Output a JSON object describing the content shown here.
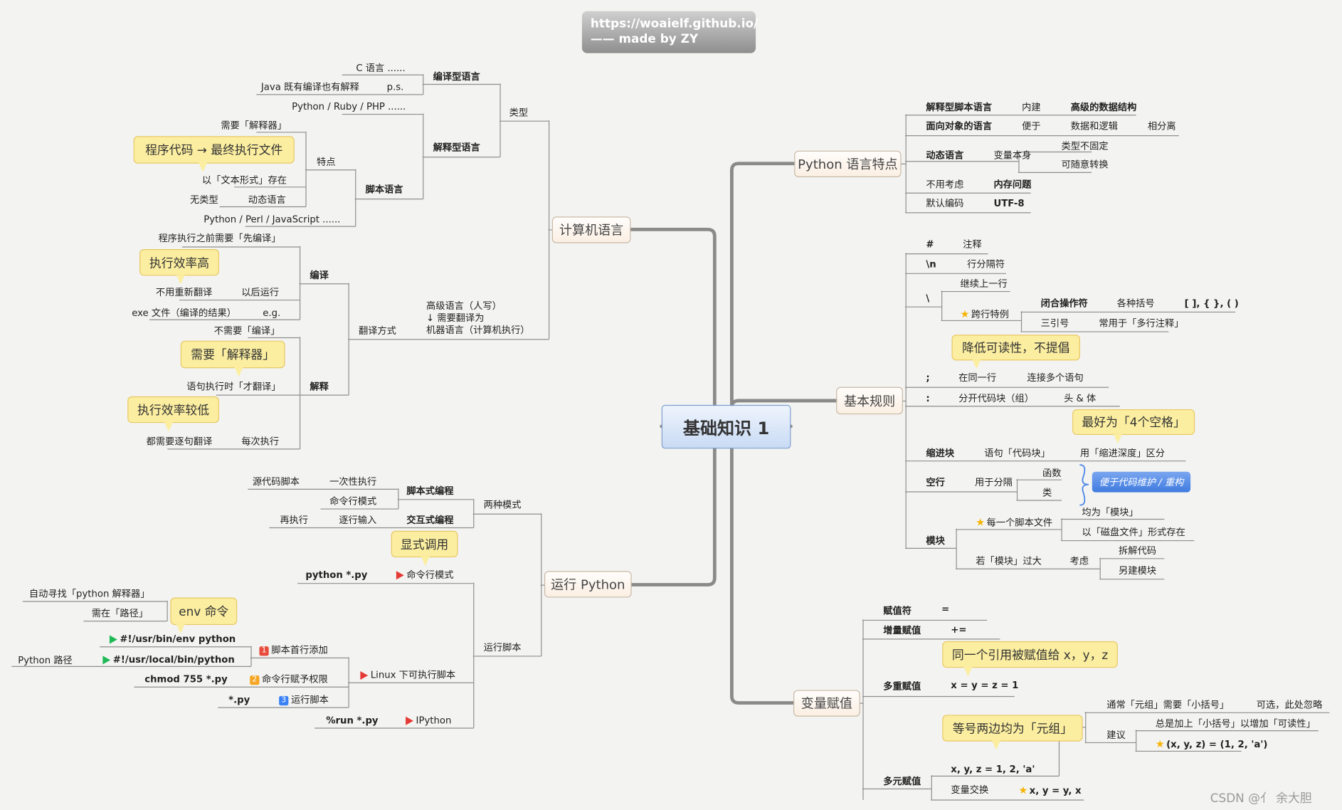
{
  "header": {
    "url": "https://woaielf.github.io/",
    "author": "—— made by ZY"
  },
  "center": {
    "title": "基础知识 1"
  },
  "colors": {
    "callout": "#fbeea0",
    "center": "#c9dbf4",
    "branch_line": "#8a8a8a",
    "accent_blue": "#3f7be0",
    "flag_red": "#e53935",
    "flag_green": "#1db954",
    "star": "#f5b400"
  },
  "computer_language": {
    "title": "计算机语言",
    "type": {
      "label": "类型",
      "compiled": {
        "label": "编译型语言",
        "c": "C 语言 ......",
        "java": "Java 既有编译也有解释",
        "ps": "p.s."
      },
      "interpreted": {
        "label": "解释型语言",
        "examples": "Python / Ruby / PHP ......",
        "script": {
          "label": "脚本语言",
          "features": {
            "label": "特点",
            "needs_interpreter": "需要「解释器」",
            "callout": "程序代码 → 最终执行文件",
            "text_form": "以「文本形式」存在",
            "untyped": "无类型",
            "dynamic": "动态语言"
          },
          "examples": "Python / Perl / JavaScript ......"
        }
      }
    },
    "translation": {
      "label": "翻译方式",
      "note": [
        "高级语言（人写）",
        "↓  需要翻译为",
        "机器语言（计算机执行）"
      ],
      "compile": {
        "label": "编译",
        "pre_compile": "程序执行之前需要「先编译」",
        "callout": "执行效率高",
        "no_retranslate": "不用重新翻译",
        "run_later": "以后运行",
        "exe": "exe 文件（编译的结果）",
        "eg": "e.g."
      },
      "interpret": {
        "label": "解释",
        "no_compile": "不需要「编译」",
        "callout_interpreter": "需要「解释器」",
        "runtime": "语句执行时「才翻译」",
        "callout_slow": "执行效率较低",
        "every_time": "都需要逐句翻译",
        "each_run": "每次执行"
      }
    }
  },
  "run_python": {
    "title": "运行 Python",
    "modes": {
      "label": "两种模式",
      "script_prog": {
        "label": "脚本式编程",
        "source": "源代码脚本",
        "once": "一次性执行",
        "cmd": "命令行模式"
      },
      "interactive": {
        "label": "交互式编程",
        "again": "再执行",
        "line_by_line": "逐行输入"
      }
    },
    "run_script": {
      "label": "运行脚本",
      "callout": "显式调用",
      "cmd_mode": {
        "label": "命令行模式",
        "code": "python *.py"
      },
      "linux": {
        "label": "Linux 下可执行脚本",
        "step1": {
          "badge": "1",
          "label": "脚本首行添加",
          "env": "#!/usr/bin/env python",
          "env_callout": "env 命令",
          "auto_find": "自动寻找「python 解释器」",
          "needs_path": "需在「路径」",
          "local": "#!/usr/local/bin/python",
          "path_label": "Python 路径"
        },
        "step2": {
          "badge": "2",
          "label": "命令行赋予权限",
          "code": "chmod 755 *.py"
        },
        "step3": {
          "badge": "3",
          "label": "运行脚本",
          "code": "*.py"
        }
      },
      "ipython": {
        "label": "IPython",
        "code": "%run *.py"
      }
    }
  },
  "python_features": {
    "title": "Python 语言特点",
    "interpreted": {
      "label": "解释型脚本语言",
      "builtin": "内建",
      "structures": "高级的数据结构"
    },
    "oop": {
      "label": "面向对象的语言",
      "easy": "便于",
      "data_logic": "数据和逻辑",
      "separate": "相分离"
    },
    "dynamic": {
      "label": "动态语言",
      "variable": "变量本身",
      "not_fixed": "类型不固定",
      "convertible": "可随意转换"
    },
    "memory": {
      "label": "不用考虑",
      "value": "内存问题"
    },
    "encoding": {
      "label": "默认编码",
      "value": "UTF-8"
    }
  },
  "basic_rules": {
    "title": "基本规则",
    "hash": {
      "label": "#",
      "desc": "注释"
    },
    "newline": {
      "label": "\\n",
      "desc": "行分隔符"
    },
    "backslash": {
      "label": "\\",
      "continue": "继续上一行",
      "exception": {
        "label": "跨行特例",
        "closing": {
          "label": "闭合操作符",
          "desc": "各种括号",
          "value": "[ ], { }, ( )"
        },
        "triple": {
          "label": "三引号",
          "desc": "常用于「多行注释」"
        }
      },
      "callout": "降低可读性，不提倡"
    },
    "semicolon": {
      "label": ";",
      "desc": "在同一行",
      "detail": "连接多个语句"
    },
    "colon": {
      "label": ":",
      "desc": "分开代码块（组）",
      "detail": "头 & 体"
    },
    "indent": {
      "callout": "最好为「4个空格」",
      "label": "缩进块",
      "desc": "语句「代码块」",
      "detail": "用「缩进深度」区分"
    },
    "blank": {
      "label": "空行",
      "desc": "用于分隔",
      "func": "函数",
      "cls": "类",
      "summary": "便于代码维护 / 重构"
    },
    "module": {
      "label": "模块",
      "each_file": "每一个脚本文件",
      "is_module": "均为「模块」",
      "disk": "以「磁盘文件」形式存在",
      "too_big": "若「模块」过大",
      "consider": "考虑",
      "split": "拆解代码",
      "new_module": "另建模块"
    }
  },
  "assignment": {
    "title": "变量赋值",
    "operator": {
      "label": "赋值符",
      "value": "="
    },
    "incremental": {
      "label": "增量赋值",
      "value": "+="
    },
    "multiple": {
      "label": "多重赋值",
      "callout": "同一个引用被赋值给 x，y，z",
      "code": "x = y = z = 1"
    },
    "multi_target": {
      "label": "多元赋值",
      "callout": "等号两边均为「元组」",
      "code": "x, y, z = 1, 2, 'a'",
      "usually": "通常「元组」需要「小括号」",
      "optional": "可选，此处忽略",
      "suggest": {
        "label": "建议",
        "always": "总是加上「小括号」以增加「可读性」",
        "code": "(x, y, z) = (1, 2, 'a')"
      },
      "swap": {
        "label": "变量交换",
        "code": "x, y = y, x"
      }
    }
  },
  "watermark": "CSDN @亻 余大胆"
}
